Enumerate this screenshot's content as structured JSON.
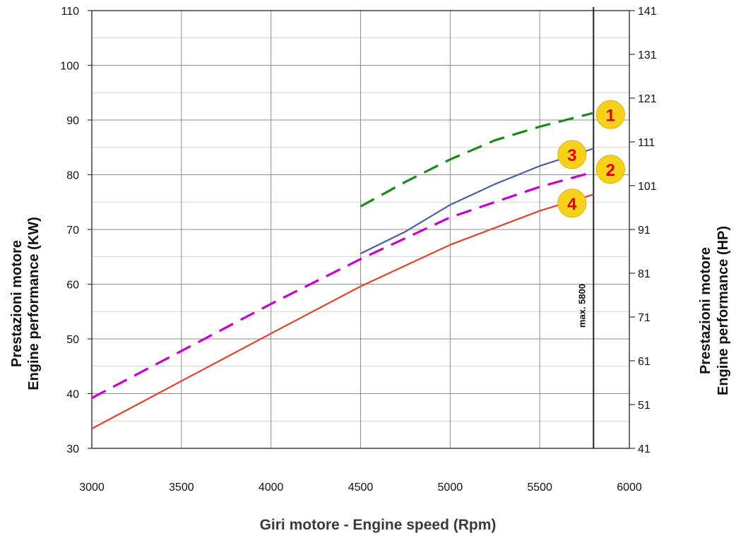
{
  "chart_data": {
    "type": "line",
    "xlabel": "Giri motore - Engine speed (Rpm)",
    "ylabel": [
      "Prestazioni motore",
      "Engine performance (KW)"
    ],
    "y2label": [
      "Prestazioni motore",
      "Engine performance (HP)"
    ],
    "xlim": [
      3000,
      6000
    ],
    "ylim": [
      30,
      110
    ],
    "x_ticks": [
      3000,
      3500,
      4000,
      4500,
      5000,
      5500,
      6000
    ],
    "y_ticks": [
      30,
      40,
      50,
      60,
      70,
      80,
      90,
      100,
      110
    ],
    "y2_ticks": [
      41,
      51,
      61,
      71,
      81,
      91,
      101,
      111,
      121,
      131,
      141
    ],
    "grid": true,
    "vline": {
      "x": 5800,
      "label": "max. 5800"
    },
    "series": [
      {
        "name": "1",
        "color": "#1a8a1a",
        "dash": "long-dash",
        "x": [
          4500,
          4750,
          5000,
          5250,
          5500,
          5800
        ],
        "y": [
          74.2,
          78.7,
          82.8,
          86.3,
          88.8,
          91.3
        ]
      },
      {
        "name": "2",
        "color": "#cc00cc",
        "dash": "long-dash",
        "x": [
          3000,
          3500,
          4000,
          4500,
          5000,
          5500,
          5800
        ],
        "y": [
          39.2,
          47.8,
          56.4,
          64.6,
          72.2,
          77.8,
          80.5
        ]
      },
      {
        "name": "3",
        "color": "#4a5fa8",
        "dash": "solid",
        "x": [
          4500,
          4750,
          5000,
          5250,
          5500,
          5800
        ],
        "y": [
          65.6,
          69.6,
          74.5,
          78.3,
          81.6,
          84.8
        ]
      },
      {
        "name": "4",
        "color": "#e8402a",
        "dash": "solid",
        "x": [
          3000,
          3500,
          4000,
          4500,
          5000,
          5500,
          5800
        ],
        "y": [
          33.6,
          42.3,
          51.0,
          59.6,
          67.2,
          73.4,
          76.4
        ]
      }
    ],
    "markers": [
      {
        "label": "1",
        "x": 5895,
        "y": 91.0
      },
      {
        "label": "3",
        "x": 5680,
        "y": 83.7
      },
      {
        "label": "2",
        "x": 5895,
        "y": 81.0
      },
      {
        "label": "4",
        "x": 5680,
        "y": 74.8
      }
    ],
    "marker_fill": "#f7d11b",
    "marker_text_color": "#e00000"
  }
}
